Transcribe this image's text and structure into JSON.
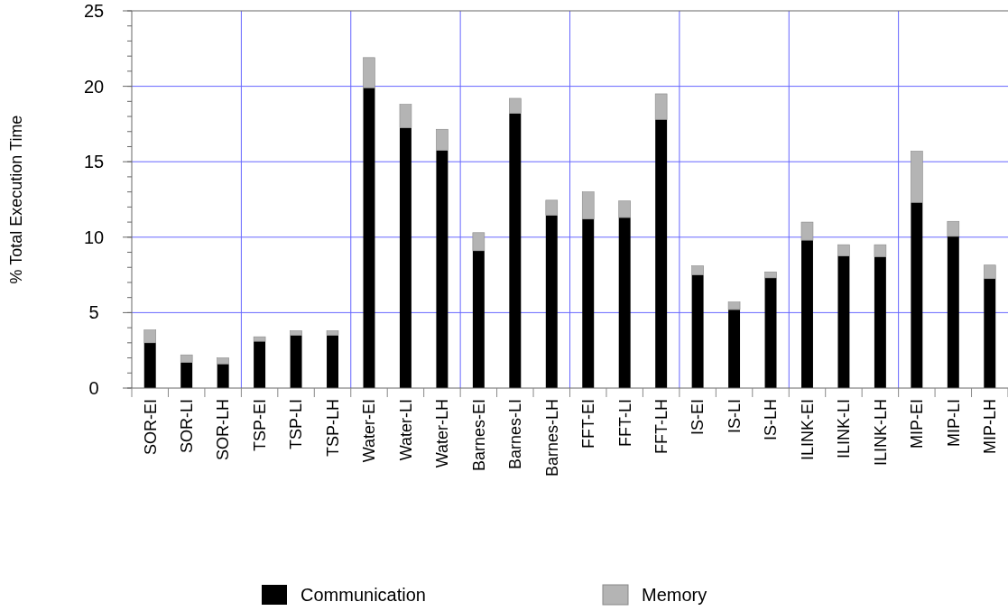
{
  "chart_data": {
    "type": "bar",
    "ylabel": "% Total Execution Time",
    "categories": [
      "SOR-EI",
      "SOR-LI",
      "SOR-LH",
      "TSP-EI",
      "TSP-LI",
      "TSP-LH",
      "Water-EI",
      "Water-LI",
      "Water-LH",
      "Barnes-EI",
      "Barnes-LI",
      "Barnes-LH",
      "FFT-EI",
      "FFT-LI",
      "FFT-LH",
      "IS-EI",
      "IS-LI",
      "IS-LH",
      "ILINK-EI",
      "ILINK-LI",
      "ILINK-LH",
      "MIP-EI",
      "MIP-LI",
      "MIP-LH"
    ],
    "stacked": true,
    "series": [
      {
        "name": "Communication",
        "color": "#000000",
        "values": [
          3.0,
          1.7,
          1.6,
          3.1,
          3.5,
          3.5,
          19.9,
          17.25,
          15.75,
          9.1,
          18.2,
          11.45,
          11.2,
          11.3,
          17.8,
          7.5,
          5.2,
          7.3,
          9.8,
          8.75,
          8.7,
          12.3,
          10.05,
          7.25
        ]
      },
      {
        "name": "Memory",
        "color": "#b4b4b4",
        "values": [
          0.85,
          0.5,
          0.4,
          0.3,
          0.3,
          0.3,
          2.0,
          1.55,
          1.4,
          1.2,
          1.0,
          1.0,
          1.8,
          1.1,
          1.7,
          0.6,
          0.5,
          0.4,
          1.2,
          0.75,
          0.8,
          3.4,
          1.0,
          0.9
        ]
      }
    ],
    "ylim": [
      0,
      25
    ],
    "yticks": [
      0,
      5,
      10,
      15,
      20,
      25
    ],
    "grid": true,
    "legend": "bottom"
  }
}
